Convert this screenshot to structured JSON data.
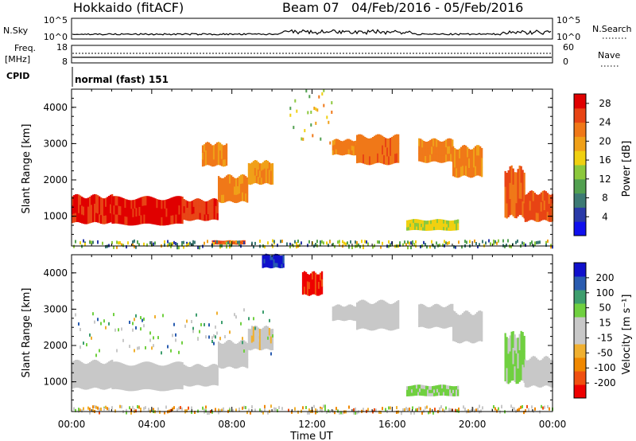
{
  "header": {
    "station": "Hokkaido (fitACF)",
    "beam": "Beam 07",
    "dates": "04/Feb/2016 - 05/Feb/2016"
  },
  "top_panels": {
    "nsky_label": "N.Sky",
    "nsky_top": "10^5",
    "nsky_bottom": "10^0",
    "nsearch_label": "N.Search",
    "nsearch_top": "10^5",
    "nsearch_bottom": "10^0",
    "freq_label": "Freq.",
    "freq_unit": "[MHz]",
    "freq_top": "18",
    "freq_bottom": "8",
    "nave_label": "Nave",
    "nave_top": "60",
    "nave_bottom": "0",
    "cpid_label": "CPID",
    "cpid_value": "normal (fast) 151"
  },
  "colors": {
    "power_scale": [
      "#1010ee",
      "#2a3aa8",
      "#3d7a74",
      "#52a050",
      "#8cc83c",
      "#f0d010",
      "#f0a018",
      "#f07818",
      "#e84414",
      "#e00000"
    ],
    "velocity_scale": [
      "#ee0000",
      "#f05010",
      "#f08800",
      "#f0b030",
      "#c8c8c8",
      "#c8c8c8",
      "#70d040",
      "#3e9e6e",
      "#2a5cb0",
      "#1010cc"
    ]
  },
  "chart_data": [
    {
      "type": "heatmap",
      "panel": "power",
      "ylabel": "Slant Range [km]",
      "yticks": [
        1000,
        2000,
        3000,
        4000
      ],
      "ylim": [
        180,
        4500
      ],
      "xlim_hours": [
        0,
        24
      ],
      "colorbar": {
        "label": "Power [dB]",
        "ticks": [
          "4",
          "8",
          "12",
          "16",
          "20",
          "24",
          "28"
        ],
        "range": [
          0,
          30
        ]
      },
      "regions": [
        {
          "t0": 0.0,
          "t1": 2.0,
          "r0": 820,
          "r1": 1550,
          "level": 27
        },
        {
          "t0": 2.0,
          "t1": 5.5,
          "r0": 780,
          "r1": 1500,
          "level": 28
        },
        {
          "t0": 5.5,
          "t1": 7.3,
          "r0": 900,
          "r1": 1450,
          "level": 26
        },
        {
          "t0": 7.3,
          "t1": 8.8,
          "r0": 1400,
          "r1": 2100,
          "level": 22
        },
        {
          "t0": 8.8,
          "t1": 10.0,
          "r0": 1900,
          "r1": 2500,
          "level": 20
        },
        {
          "t0": 6.5,
          "t1": 7.7,
          "r0": 2400,
          "r1": 3000,
          "level": 22
        },
        {
          "t0": 13.0,
          "t1": 14.3,
          "r0": 2700,
          "r1": 3100,
          "level": 22
        },
        {
          "t0": 14.2,
          "t1": 16.3,
          "r0": 2450,
          "r1": 3200,
          "level": 23
        },
        {
          "t0": 17.3,
          "t1": 19.0,
          "r0": 2500,
          "r1": 3100,
          "level": 22
        },
        {
          "t0": 19.0,
          "t1": 20.5,
          "r0": 2100,
          "r1": 2900,
          "level": 22
        },
        {
          "t0": 21.6,
          "t1": 22.6,
          "r0": 1000,
          "r1": 2300,
          "level": 24
        },
        {
          "t0": 22.6,
          "t1": 24.0,
          "r0": 880,
          "r1": 1650,
          "level": 25
        },
        {
          "t0": 16.7,
          "t1": 19.3,
          "r0": 620,
          "r1": 900,
          "level": 16
        },
        {
          "t0": 7.0,
          "t1": 8.6,
          "r0": 230,
          "r1": 330,
          "level": 24
        },
        {
          "t0": 0.0,
          "t1": 24.0,
          "r0": 180,
          "r1": 360,
          "level": 12,
          "sparse": true
        },
        {
          "t0": 10.8,
          "t1": 13.0,
          "r0": 3000,
          "r1": 4500,
          "level": 16,
          "sparse": true
        }
      ]
    },
    {
      "type": "heatmap",
      "panel": "velocity",
      "ylabel": "Slant Range [km]",
      "xlabel": "Time UT",
      "xticks": [
        "00:00",
        "04:00",
        "08:00",
        "12:00",
        "16:00",
        "20:00",
        "00:00"
      ],
      "yticks": [
        1000,
        2000,
        3000,
        4000
      ],
      "ylim": [
        180,
        4500
      ],
      "xlim_hours": [
        0,
        24
      ],
      "colorbar": {
        "label": "Velocity [m s⁻¹]",
        "ticks": [
          "200",
          "100",
          "50",
          "15",
          "-15",
          "-50",
          "-100",
          "-200"
        ],
        "range": [
          -250,
          250
        ]
      },
      "regions": [
        {
          "t0": 0.0,
          "t1": 2.0,
          "r0": 820,
          "r1": 1550,
          "level": 0
        },
        {
          "t0": 2.0,
          "t1": 5.5,
          "r0": 780,
          "r1": 1500,
          "level": 0
        },
        {
          "t0": 5.5,
          "t1": 7.3,
          "r0": 900,
          "r1": 1450,
          "level": 0
        },
        {
          "t0": 7.3,
          "t1": 8.8,
          "r0": 1400,
          "r1": 2100,
          "level": 0
        },
        {
          "t0": 8.8,
          "t1": 10.0,
          "r0": 1900,
          "r1": 2500,
          "level": -30
        },
        {
          "t0": 13.0,
          "t1": 14.3,
          "r0": 2700,
          "r1": 3100,
          "level": 0
        },
        {
          "t0": 14.2,
          "t1": 16.3,
          "r0": 2450,
          "r1": 3200,
          "level": 0
        },
        {
          "t0": 17.3,
          "t1": 19.0,
          "r0": 2500,
          "r1": 3100,
          "level": 0
        },
        {
          "t0": 19.0,
          "t1": 20.5,
          "r0": 2100,
          "r1": 2900,
          "level": 0
        },
        {
          "t0": 21.6,
          "t1": 22.6,
          "r0": 1000,
          "r1": 2300,
          "level": 60
        },
        {
          "t0": 22.6,
          "t1": 24.0,
          "r0": 880,
          "r1": 1650,
          "level": 0
        },
        {
          "t0": 16.7,
          "t1": 19.3,
          "r0": 620,
          "r1": 900,
          "level": 60
        },
        {
          "t0": 9.5,
          "t1": 10.6,
          "r0": 4150,
          "r1": 4500,
          "level": 220
        },
        {
          "t0": 11.5,
          "t1": 12.5,
          "r0": 3400,
          "r1": 4000,
          "level": -220
        },
        {
          "t0": 0.0,
          "t1": 24.0,
          "r0": 180,
          "r1": 360,
          "level": -40,
          "sparse": true
        },
        {
          "t0": 0.0,
          "t1": 10.0,
          "r0": 1800,
          "r1": 3000,
          "level": 50,
          "sparse": true
        }
      ]
    }
  ]
}
